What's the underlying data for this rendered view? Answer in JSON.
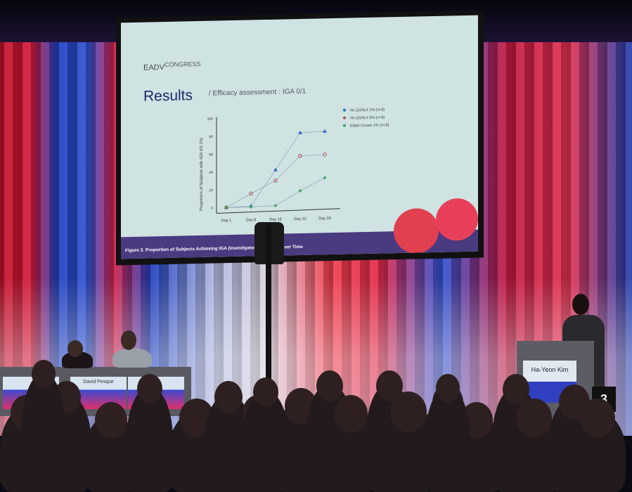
{
  "slide": {
    "logo": "EADV",
    "logo_suffix": "CONGRESS",
    "title": "Results",
    "subtitle": "/ Efficacy assessment : IGA 0/1",
    "caption": "Figure 3. Proportion of Subjects Achieving IGA (Investigator Glob… 0/1 Over Time"
  },
  "chart_data": {
    "type": "line",
    "categories": [
      "Day 1",
      "Day 8",
      "Day 15",
      "Day 22",
      "Day 29"
    ],
    "ylabel": "Proportion of Subjects with IGA 0/1 (%)",
    "ylim": [
      0,
      100
    ],
    "yticks": [
      "0",
      "20",
      "40",
      "60",
      "80",
      "100"
    ],
    "legend": "top-right",
    "series": [
      {
        "name": "IN-115314 1% (n=8)",
        "values": [
          0,
          1,
          41,
          82,
          83
        ],
        "color": "#2a6ac0",
        "marker": "triangle"
      },
      {
        "name": "IN-115314 3% (n=8)",
        "values": [
          0,
          15,
          29,
          56,
          57
        ],
        "color": "#b05050",
        "marker": "circle"
      },
      {
        "name": "Elidel Cream 1% (n=8)",
        "values": [
          0,
          0,
          1,
          17,
          31
        ],
        "color": "#40a860",
        "marker": "diamond"
      }
    ]
  },
  "panel": {
    "monitor_name": "David Pesque"
  },
  "podium": {
    "speaker_name": "Ha-Yeon Kim",
    "room_number": "3"
  }
}
